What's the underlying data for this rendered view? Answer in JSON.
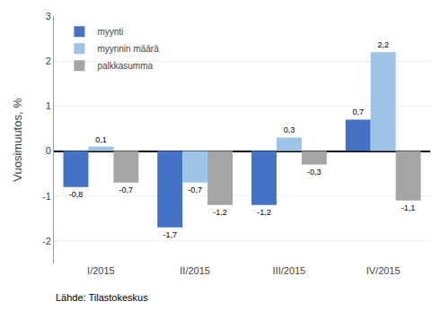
{
  "chart_data": {
    "type": "bar",
    "categories": [
      "I/2015",
      "II/2015",
      "III/2015",
      "IV/2015"
    ],
    "series": [
      {
        "name": "myynti",
        "color": "#4472C4",
        "values": [
          -0.8,
          -1.7,
          -1.2,
          0.7
        ],
        "value_labels": [
          "-0,8",
          "-1,7",
          "-1,2",
          "0,7"
        ]
      },
      {
        "name": "myynnin määrä",
        "color": "#9DC3E6",
        "values": [
          0.1,
          -0.7,
          0.3,
          2.2
        ],
        "value_labels": [
          "0,1",
          "-0,7",
          "0,3",
          "2,2"
        ]
      },
      {
        "name": "palkkasumma",
        "color": "#A5A5A5",
        "values": [
          -0.7,
          -1.2,
          -0.3,
          -1.1
        ],
        "value_labels": [
          "-0,7",
          "-1,2",
          "-0,3",
          "-1,1"
        ]
      }
    ],
    "ylabel": "Vuosimuutos, %",
    "ylim": [
      -2.5,
      3.0
    ],
    "yticks": [
      -2,
      -1,
      0,
      1,
      2,
      3
    ],
    "grid": true,
    "legend": "upper left",
    "data_labels": true,
    "annotations": [
      "Lähde: Tilastokeskus"
    ]
  }
}
